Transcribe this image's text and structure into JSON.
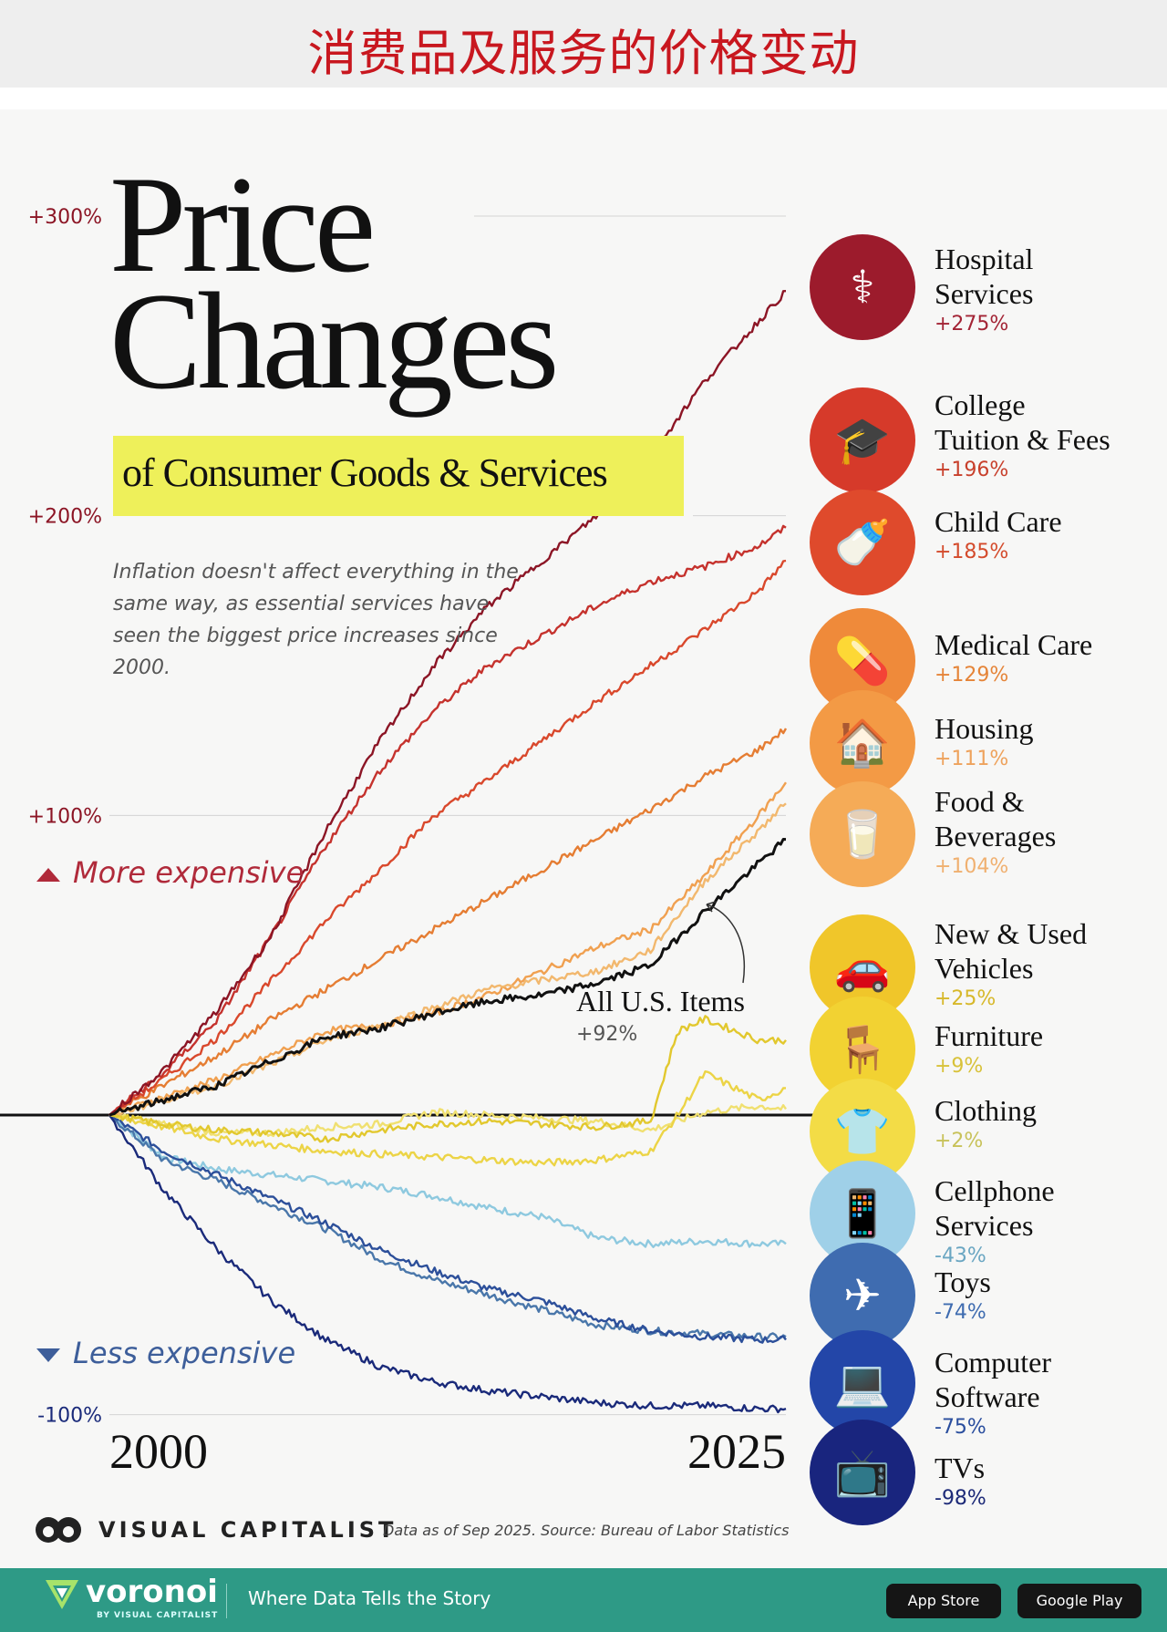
{
  "banner": {
    "title": "消费品及服务的价格变动"
  },
  "header": {
    "title_line1": "Price",
    "title_line2": "Changes",
    "subtitle": "of Consumer Goods & Services",
    "description": "Inflation doesn't affect everything in the same way, as essential services have seen the biggest price increases since 2000."
  },
  "markers": {
    "more": "More expensive",
    "less": "Less expensive"
  },
  "chart_data": {
    "type": "line",
    "title": "Price Changes of Consumer Goods & Services",
    "xlabel": "",
    "ylabel": "",
    "x_range": [
      2000,
      2025
    ],
    "x_ticks": [
      "2000",
      "2025"
    ],
    "ylim": [
      -100,
      300
    ],
    "y_ticks": [
      "+300%",
      "+200%",
      "+100%",
      "-100%"
    ],
    "baseline": 0,
    "series": [
      {
        "name": "Hospital Services",
        "pct_label": "+275%",
        "color": "#8c1525",
        "points": [
          [
            2000,
            0
          ],
          [
            2002,
            15
          ],
          [
            2004,
            35
          ],
          [
            2006,
            60
          ],
          [
            2008,
            95
          ],
          [
            2010,
            125
          ],
          [
            2012,
            150
          ],
          [
            2014,
            170
          ],
          [
            2016,
            185
          ],
          [
            2018,
            200
          ],
          [
            2020,
            220
          ],
          [
            2022,
            245
          ],
          [
            2024,
            265
          ],
          [
            2025,
            275
          ]
        ]
      },
      {
        "name": "College Tuition & Fees",
        "pct_label": "+196%",
        "color": "#c5322d",
        "points": [
          [
            2000,
            0
          ],
          [
            2002,
            14
          ],
          [
            2004,
            32
          ],
          [
            2006,
            60
          ],
          [
            2008,
            90
          ],
          [
            2010,
            115
          ],
          [
            2012,
            135
          ],
          [
            2014,
            150
          ],
          [
            2016,
            160
          ],
          [
            2018,
            170
          ],
          [
            2020,
            178
          ],
          [
            2022,
            183
          ],
          [
            2024,
            190
          ],
          [
            2025,
            196
          ]
        ]
      },
      {
        "name": "Child Care",
        "pct_label": "+185%",
        "color": "#d9482c",
        "points": [
          [
            2000,
            0
          ],
          [
            2002,
            12
          ],
          [
            2004,
            26
          ],
          [
            2006,
            45
          ],
          [
            2008,
            65
          ],
          [
            2010,
            82
          ],
          [
            2012,
            100
          ],
          [
            2014,
            112
          ],
          [
            2016,
            125
          ],
          [
            2018,
            138
          ],
          [
            2020,
            150
          ],
          [
            2022,
            162
          ],
          [
            2024,
            175
          ],
          [
            2025,
            185
          ]
        ]
      },
      {
        "name": "Medical Care",
        "pct_label": "+129%",
        "color": "#e57d33",
        "points": [
          [
            2000,
            0
          ],
          [
            2002,
            10
          ],
          [
            2004,
            20
          ],
          [
            2006,
            32
          ],
          [
            2008,
            42
          ],
          [
            2010,
            52
          ],
          [
            2012,
            62
          ],
          [
            2014,
            72
          ],
          [
            2016,
            82
          ],
          [
            2018,
            92
          ],
          [
            2020,
            102
          ],
          [
            2022,
            113
          ],
          [
            2024,
            122
          ],
          [
            2025,
            129
          ]
        ]
      },
      {
        "name": "Housing",
        "pct_label": "+111%",
        "color": "#f0a050",
        "points": [
          [
            2000,
            0
          ],
          [
            2002,
            6
          ],
          [
            2004,
            12
          ],
          [
            2006,
            20
          ],
          [
            2008,
            28
          ],
          [
            2010,
            30
          ],
          [
            2012,
            34
          ],
          [
            2014,
            40
          ],
          [
            2016,
            48
          ],
          [
            2018,
            56
          ],
          [
            2020,
            62
          ],
          [
            2022,
            80
          ],
          [
            2024,
            100
          ],
          [
            2025,
            111
          ]
        ]
      },
      {
        "name": "Food & Beverages",
        "pct_label": "+104%",
        "color": "#f2b86e",
        "points": [
          [
            2000,
            0
          ],
          [
            2002,
            5
          ],
          [
            2004,
            10
          ],
          [
            2006,
            17
          ],
          [
            2008,
            25
          ],
          [
            2010,
            30
          ],
          [
            2012,
            36
          ],
          [
            2014,
            42
          ],
          [
            2016,
            45
          ],
          [
            2018,
            48
          ],
          [
            2020,
            55
          ],
          [
            2022,
            78
          ],
          [
            2024,
            95
          ],
          [
            2025,
            104
          ]
        ]
      },
      {
        "name": "All U.S. Items",
        "pct_label": "+92%",
        "color": "#111111",
        "points": [
          [
            2000,
            0
          ],
          [
            2002,
            5
          ],
          [
            2004,
            10
          ],
          [
            2006,
            18
          ],
          [
            2008,
            26
          ],
          [
            2010,
            29
          ],
          [
            2012,
            34
          ],
          [
            2014,
            38
          ],
          [
            2016,
            40
          ],
          [
            2018,
            44
          ],
          [
            2020,
            50
          ],
          [
            2022,
            68
          ],
          [
            2024,
            84
          ],
          [
            2025,
            92
          ]
        ]
      },
      {
        "name": "New & Used Vehicles",
        "pct_label": "+25%",
        "color": "#e2c82e",
        "points": [
          [
            2000,
            0
          ],
          [
            2002,
            -3
          ],
          [
            2004,
            -5
          ],
          [
            2006,
            -6
          ],
          [
            2008,
            -8
          ],
          [
            2010,
            -5
          ],
          [
            2012,
            -3
          ],
          [
            2014,
            -2
          ],
          [
            2016,
            -3
          ],
          [
            2018,
            -4
          ],
          [
            2020,
            -2
          ],
          [
            2021,
            28
          ],
          [
            2022,
            32
          ],
          [
            2024,
            25
          ],
          [
            2025,
            25
          ]
        ]
      },
      {
        "name": "Furniture",
        "pct_label": "+9%",
        "color": "#ecd446",
        "points": [
          [
            2000,
            0
          ],
          [
            2002,
            -4
          ],
          [
            2004,
            -8
          ],
          [
            2006,
            -10
          ],
          [
            2008,
            -12
          ],
          [
            2010,
            -13
          ],
          [
            2012,
            -14
          ],
          [
            2014,
            -15
          ],
          [
            2016,
            -16
          ],
          [
            2018,
            -15
          ],
          [
            2020,
            -12
          ],
          [
            2021,
            0
          ],
          [
            2022,
            14
          ],
          [
            2024,
            5
          ],
          [
            2025,
            9
          ]
        ]
      },
      {
        "name": "Clothing",
        "pct_label": "+2%",
        "color": "#f0e070",
        "points": [
          [
            2000,
            0
          ],
          [
            2002,
            -3
          ],
          [
            2004,
            -6
          ],
          [
            2006,
            -6
          ],
          [
            2008,
            -4
          ],
          [
            2010,
            -3
          ],
          [
            2012,
            1
          ],
          [
            2014,
            0
          ],
          [
            2016,
            -1
          ],
          [
            2018,
            -2
          ],
          [
            2020,
            -5
          ],
          [
            2022,
            1
          ],
          [
            2024,
            3
          ],
          [
            2025,
            2
          ]
        ]
      },
      {
        "name": "Cellphone Services",
        "pct_label": "-43%",
        "color": "#8ec9df",
        "points": [
          [
            2000,
            0
          ],
          [
            2002,
            -14
          ],
          [
            2004,
            -18
          ],
          [
            2006,
            -20
          ],
          [
            2008,
            -22
          ],
          [
            2010,
            -24
          ],
          [
            2012,
            -27
          ],
          [
            2014,
            -31
          ],
          [
            2016,
            -34
          ],
          [
            2018,
            -41
          ],
          [
            2020,
            -43
          ],
          [
            2022,
            -42
          ],
          [
            2024,
            -43
          ],
          [
            2025,
            -43
          ]
        ]
      },
      {
        "name": "Toys",
        "pct_label": "-74%",
        "color": "#4a77aa",
        "points": [
          [
            2000,
            0
          ],
          [
            2002,
            -15
          ],
          [
            2004,
            -22
          ],
          [
            2006,
            -30
          ],
          [
            2008,
            -38
          ],
          [
            2010,
            -48
          ],
          [
            2012,
            -55
          ],
          [
            2014,
            -60
          ],
          [
            2016,
            -65
          ],
          [
            2018,
            -70
          ],
          [
            2020,
            -72
          ],
          [
            2022,
            -73
          ],
          [
            2024,
            -74
          ],
          [
            2025,
            -74
          ]
        ]
      },
      {
        "name": "Computer Software",
        "pct_label": "-75%",
        "color": "#2c4f9a",
        "points": [
          [
            2000,
            0
          ],
          [
            2002,
            -12
          ],
          [
            2004,
            -20
          ],
          [
            2006,
            -28
          ],
          [
            2008,
            -36
          ],
          [
            2010,
            -45
          ],
          [
            2012,
            -52
          ],
          [
            2014,
            -58
          ],
          [
            2016,
            -62
          ],
          [
            2018,
            -68
          ],
          [
            2020,
            -72
          ],
          [
            2022,
            -74
          ],
          [
            2024,
            -75
          ],
          [
            2025,
            -75
          ]
        ]
      },
      {
        "name": "TVs",
        "pct_label": "-98%",
        "color": "#1a2a7a",
        "points": [
          [
            2000,
            0
          ],
          [
            2002,
            -25
          ],
          [
            2004,
            -45
          ],
          [
            2006,
            -62
          ],
          [
            2008,
            -75
          ],
          [
            2010,
            -84
          ],
          [
            2012,
            -89
          ],
          [
            2014,
            -92
          ],
          [
            2016,
            -94
          ],
          [
            2018,
            -96
          ],
          [
            2020,
            -97
          ],
          [
            2022,
            -97
          ],
          [
            2024,
            -98
          ],
          [
            2025,
            -98
          ]
        ]
      }
    ]
  },
  "categories": [
    {
      "name_lines": [
        "Hospital",
        "Services"
      ],
      "pct": "+275%",
      "color": "#9c1b2c",
      "pct_color": "#a32435",
      "icon": "stethoscope-icon",
      "glyph": "⚕"
    },
    {
      "name_lines": [
        "College",
        "Tuition & Fees"
      ],
      "pct": "+196%",
      "color": "#d63a2a",
      "pct_color": "#c8402c",
      "icon": "graduation-cap-icon",
      "glyph": "🎓"
    },
    {
      "name_lines": [
        "Child Care"
      ],
      "pct": "+185%",
      "color": "#df4a2c",
      "pct_color": "#d44b2c",
      "icon": "baby-bottle-icon",
      "glyph": "🍼"
    },
    {
      "name_lines": [
        "Medical Care"
      ],
      "pct": "+129%",
      "color": "#ef8a3a",
      "pct_color": "#e58438",
      "icon": "pill-bottle-icon",
      "glyph": "💊"
    },
    {
      "name_lines": [
        "Housing"
      ],
      "pct": "+111%",
      "color": "#f39a45",
      "pct_color": "#eea25c",
      "icon": "house-icon",
      "glyph": "🏠"
    },
    {
      "name_lines": [
        "Food &",
        "Beverages"
      ],
      "pct": "+104%",
      "color": "#f5ab57",
      "pct_color": "#f0b070",
      "icon": "milk-bottle-icon",
      "glyph": "🥛"
    },
    {
      "name_lines": [
        "New & Used",
        "Vehicles"
      ],
      "pct": "+25%",
      "color": "#f0c62a",
      "pct_color": "#d7b82a",
      "icon": "car-icon",
      "glyph": "🚗"
    },
    {
      "name_lines": [
        "Furniture"
      ],
      "pct": "+9%",
      "color": "#f2d232",
      "pct_color": "#d8c23a",
      "icon": "armchair-icon",
      "glyph": "🪑"
    },
    {
      "name_lines": [
        "Clothing"
      ],
      "pct": "+2%",
      "color": "#f3dc46",
      "pct_color": "#c8c25a",
      "icon": "folded-clothes-icon",
      "glyph": "👕"
    },
    {
      "name_lines": [
        "Cellphone",
        "Services"
      ],
      "pct": "-43%",
      "color": "#9fd0e8",
      "pct_color": "#6aa6c2",
      "icon": "phone-icon",
      "glyph": "📱"
    },
    {
      "name_lines": [
        "Toys"
      ],
      "pct": "-74%",
      "color": "#3f6cb0",
      "pct_color": "#3f6cb0",
      "icon": "toy-plane-icon",
      "glyph": "✈"
    },
    {
      "name_lines": [
        "Computer",
        "Software"
      ],
      "pct": "-75%",
      "color": "#2346a8",
      "pct_color": "#2a4e9e",
      "icon": "laptop-icon",
      "glyph": "💻"
    },
    {
      "name_lines": [
        "TVs"
      ],
      "pct": "-98%",
      "color": "#19257e",
      "pct_color": "#1d2a78",
      "icon": "tv-icon",
      "glyph": "📺"
    }
  ],
  "all_items": {
    "label": "All U.S. Items",
    "pct": "+92%"
  },
  "credit": {
    "brand": "VISUAL CAPITALIST",
    "source": "Data as of Sep 2025. Source: Bureau of Labor Statistics"
  },
  "footer": {
    "brand": "voronoi",
    "brand_sub": "BY VISUAL CAPITALIST",
    "tagline": "Where Data Tells the Story",
    "app_store": "App Store",
    "google_play": "Google Play"
  }
}
